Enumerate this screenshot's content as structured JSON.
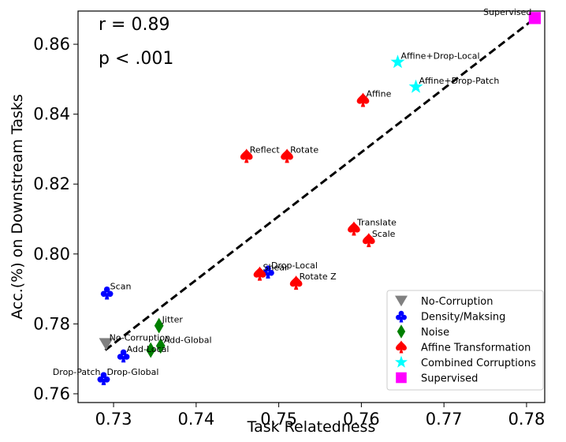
{
  "chart_data": {
    "type": "scatter",
    "xlabel": "Task Relatedness",
    "ylabel": "Acc.(%) on Downstream Tasks",
    "xlim": [
      0.7257,
      0.7822
    ],
    "ylim": [
      0.7575,
      0.8695
    ],
    "xticks": [
      0.73,
      0.74,
      0.75,
      0.76,
      0.77,
      0.78
    ],
    "xtick_labels": [
      "0.73",
      "0.74",
      "0.75",
      "0.76",
      "0.77",
      "0.78"
    ],
    "yticks": [
      0.76,
      0.78,
      0.8,
      0.82,
      0.84,
      0.86
    ],
    "ytick_labels": [
      "0.76",
      "0.78",
      "0.80",
      "0.82",
      "0.84",
      "0.86"
    ],
    "annotations": {
      "r": "r = 0.89",
      "p": "p < .001"
    },
    "trendline": {
      "style": "dashed",
      "color": "#000000",
      "x": [
        0.729,
        0.7805
      ],
      "y": [
        0.7725,
        0.8665
      ]
    },
    "legend_position": "lower right",
    "grid": false,
    "series": [
      {
        "name": "No-Corruption",
        "marker": "triangle-down",
        "color": "#808080",
        "points": [
          {
            "label": "No-Corruption",
            "x": 0.7291,
            "y": 0.7743,
            "label_anchor": "start"
          }
        ]
      },
      {
        "name": "Density/Maksing",
        "marker": "club",
        "color": "#0000ff",
        "points": [
          {
            "label": "Scan",
            "x": 0.7292,
            "y": 0.789,
            "label_anchor": "start"
          },
          {
            "label": "Drop-Patch",
            "x": 0.7288,
            "y": 0.7645,
            "label_anchor": "end"
          },
          {
            "label": "Drop-Global",
            "x": 0.7288,
            "y": 0.7645,
            "label_anchor": "start"
          },
          {
            "label": "Add-Local",
            "x": 0.7312,
            "y": 0.771,
            "label_anchor": "start"
          },
          {
            "label": "Drop-Local",
            "x": 0.7487,
            "y": 0.795,
            "label_anchor": "start"
          }
        ]
      },
      {
        "name": "Noise",
        "marker": "diamond",
        "color": "#008000",
        "points": [
          {
            "label": "Jitter",
            "x": 0.7355,
            "y": 0.7795,
            "label_anchor": "start"
          },
          {
            "label": "Add-Global",
            "x": 0.7357,
            "y": 0.7737,
            "label_anchor": "start"
          },
          {
            "label": "",
            "x": 0.7345,
            "y": 0.7725,
            "label_anchor": "start"
          }
        ]
      },
      {
        "name": "Affine Transformation",
        "marker": "spade",
        "color": "#ff0000",
        "points": [
          {
            "label": "Affine",
            "x": 0.7602,
            "y": 0.8441,
            "label_anchor": "start"
          },
          {
            "label": "Reflect",
            "x": 0.7461,
            "y": 0.8281,
            "label_anchor": "start"
          },
          {
            "label": "Rotate",
            "x": 0.751,
            "y": 0.8281,
            "label_anchor": "start"
          },
          {
            "label": "Translate",
            "x": 0.7591,
            "y": 0.8073,
            "label_anchor": "start"
          },
          {
            "label": "Scale",
            "x": 0.7609,
            "y": 0.804,
            "label_anchor": "start"
          },
          {
            "label": "Shear",
            "x": 0.7477,
            "y": 0.7944,
            "label_anchor": "start"
          },
          {
            "label": "Rotate Z",
            "x": 0.7521,
            "y": 0.7918,
            "label_anchor": "start"
          }
        ]
      },
      {
        "name": "Combined Corruptions",
        "marker": "star",
        "color": "#00ffff",
        "points": [
          {
            "label": "Affine+Drop-Local",
            "x": 0.7644,
            "y": 0.8549,
            "label_anchor": "start"
          },
          {
            "label": "Affine+Drop-Patch",
            "x": 0.7666,
            "y": 0.8478,
            "label_anchor": "start"
          }
        ]
      },
      {
        "name": "Supervised",
        "marker": "square",
        "color": "#ff00ff",
        "points": [
          {
            "label": "Supervised",
            "x": 0.781,
            "y": 0.8675,
            "label_anchor": "end"
          }
        ]
      }
    ]
  }
}
